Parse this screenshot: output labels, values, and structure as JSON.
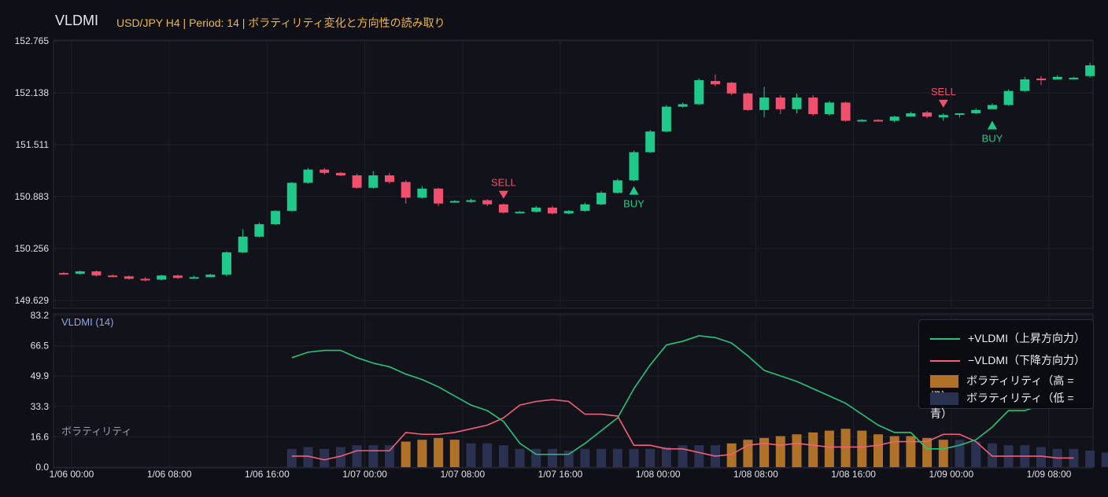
{
  "header": {
    "title": "VLDMI",
    "subtitle": "USD/JPY H4 | Period: 14 | ボラティリティ変化と方向性の読み取り"
  },
  "colors": {
    "up": "#1ec98a",
    "down": "#f0506e",
    "plus_line": "#26c47a",
    "minus_line": "#f0607a",
    "vol_high": "#b07228",
    "vol_low": "#2b3150",
    "background": "#0f0f17",
    "grid": "#1f1f2c"
  },
  "chart_data": [
    {
      "type": "candlestick",
      "y_ticks": [
        "152.765",
        "152.138",
        "151.511",
        "150.883",
        "150.256",
        "149.629"
      ],
      "ylim": [
        149.629,
        152.765
      ],
      "x_ticks": [
        "1/06 00:00",
        "1/06 08:00",
        "1/06 16:00",
        "1/07 00:00",
        "1/07 08:00",
        "1/07 16:00",
        "1/08 00:00",
        "1/08 08:00",
        "1/08 16:00",
        "1/09 00:00",
        "1/09 08:00"
      ],
      "candles": [
        [
          149.96,
          149.95,
          149.97,
          149.94
        ],
        [
          149.95,
          149.98,
          149.99,
          149.94
        ],
        [
          149.98,
          149.93,
          149.99,
          149.92
        ],
        [
          149.93,
          149.92,
          149.94,
          149.91
        ],
        [
          149.92,
          149.89,
          149.93,
          149.88
        ],
        [
          149.89,
          149.88,
          149.91,
          149.86
        ],
        [
          149.88,
          149.93,
          149.94,
          149.87
        ],
        [
          149.93,
          149.9,
          149.94,
          149.89
        ],
        [
          149.9,
          149.91,
          149.93,
          149.9
        ],
        [
          149.91,
          149.94,
          149.95,
          149.91
        ],
        [
          149.94,
          150.21,
          150.22,
          149.92
        ],
        [
          150.21,
          150.4,
          150.49,
          150.2
        ],
        [
          150.4,
          150.55,
          150.57,
          150.39
        ],
        [
          150.55,
          150.71,
          150.72,
          150.54
        ],
        [
          150.71,
          151.05,
          151.06,
          150.7
        ],
        [
          151.05,
          151.21,
          151.23,
          151.04
        ],
        [
          151.21,
          151.17,
          151.23,
          151.15
        ],
        [
          151.17,
          151.14,
          151.18,
          151.13
        ],
        [
          151.14,
          150.99,
          151.16,
          150.98
        ],
        [
          150.99,
          151.14,
          151.19,
          150.98
        ],
        [
          151.14,
          151.06,
          151.17,
          151.04
        ],
        [
          151.06,
          150.87,
          151.08,
          150.8
        ],
        [
          150.87,
          150.98,
          151.01,
          150.86
        ],
        [
          150.98,
          150.8,
          150.99,
          150.77
        ],
        [
          150.82,
          150.83,
          150.84,
          150.81
        ],
        [
          150.82,
          150.84,
          150.86,
          150.81
        ],
        [
          150.84,
          150.79,
          150.85,
          150.77
        ],
        [
          150.79,
          150.69,
          150.8,
          150.68
        ],
        [
          150.69,
          150.7,
          150.71,
          150.69
        ],
        [
          150.7,
          150.75,
          150.77,
          150.69
        ],
        [
          150.75,
          150.68,
          150.77,
          150.67
        ],
        [
          150.68,
          150.71,
          150.72,
          150.67
        ],
        [
          150.71,
          150.79,
          150.81,
          150.7
        ],
        [
          150.79,
          150.93,
          150.95,
          150.78
        ],
        [
          150.93,
          151.08,
          151.1,
          150.92
        ],
        [
          151.08,
          151.42,
          151.44,
          151.07
        ],
        [
          151.42,
          151.67,
          151.69,
          151.41
        ],
        [
          151.67,
          151.97,
          151.99,
          151.66
        ],
        [
          151.97,
          152.0,
          152.02,
          151.96
        ],
        [
          152.0,
          152.29,
          152.31,
          151.99
        ],
        [
          152.28,
          152.24,
          152.36,
          152.22
        ],
        [
          152.26,
          152.13,
          152.27,
          152.11
        ],
        [
          152.13,
          151.93,
          152.14,
          151.92
        ],
        [
          151.93,
          152.08,
          152.21,
          151.84
        ],
        [
          152.08,
          151.94,
          152.11,
          151.88
        ],
        [
          151.94,
          152.08,
          152.13,
          151.89
        ],
        [
          152.08,
          151.88,
          152.11,
          151.86
        ],
        [
          151.88,
          152.02,
          152.04,
          151.86
        ],
        [
          152.02,
          151.8,
          152.03,
          151.79
        ],
        [
          151.8,
          151.81,
          151.82,
          151.79
        ],
        [
          151.81,
          151.8,
          151.82,
          151.79
        ],
        [
          151.8,
          151.85,
          151.86,
          151.78
        ],
        [
          151.85,
          151.89,
          151.91,
          151.85
        ],
        [
          151.9,
          151.85,
          151.92,
          151.83
        ],
        [
          151.84,
          151.87,
          151.89,
          151.8
        ],
        [
          151.88,
          151.89,
          151.89,
          151.84
        ],
        [
          151.89,
          151.93,
          151.95,
          151.88
        ],
        [
          151.94,
          151.99,
          152.01,
          151.95
        ],
        [
          151.99,
          152.16,
          152.18,
          151.98
        ],
        [
          152.16,
          152.3,
          152.33,
          152.15
        ],
        [
          152.31,
          152.29,
          152.34,
          152.23
        ],
        [
          152.3,
          152.33,
          152.35,
          152.3
        ],
        [
          152.32,
          152.32,
          152.33,
          152.3
        ],
        [
          152.34,
          152.47,
          152.5,
          152.32
        ]
      ],
      "signals": [
        {
          "label": "SELL",
          "index": 27,
          "dir": "sell",
          "price": 150.84
        },
        {
          "label": "BUY",
          "index": 35,
          "dir": "buy",
          "price": 151.02
        },
        {
          "label": "SELL",
          "index": 54,
          "dir": "sell",
          "price": 151.94
        },
        {
          "label": "BUY",
          "index": 57,
          "dir": "buy",
          "price": 151.81
        }
      ]
    },
    {
      "type": "line",
      "label": "VLDMI (14)",
      "sub_label": "ボラティリティ",
      "y_ticks": [
        "83.2",
        "66.5",
        "49.9",
        "33.3",
        "16.6",
        "0.0"
      ],
      "ylim": [
        0,
        83.2
      ],
      "series": [
        {
          "name": "+VLDMI（上昇方向力）",
          "start": 14,
          "values": [
            60,
            63,
            64,
            64,
            60,
            57,
            55,
            51,
            48,
            44,
            39,
            34,
            31,
            25,
            13,
            7,
            7,
            7,
            13,
            20,
            27,
            43,
            56,
            67,
            69,
            72,
            71,
            68,
            61,
            53,
            50,
            47,
            43,
            39,
            35,
            29,
            23,
            19,
            19,
            10,
            10,
            12,
            15,
            22,
            31,
            31,
            34
          ]
        },
        {
          "name": "−VLDMI（下降方向力）",
          "start": 14,
          "values": [
            6,
            6,
            4,
            6,
            9,
            9,
            9,
            19,
            18,
            18,
            19,
            21,
            23,
            27,
            34,
            36,
            37,
            36,
            29,
            29,
            28,
            12,
            12,
            10,
            10,
            8,
            6,
            7,
            12,
            13,
            12,
            13,
            12,
            11,
            11,
            11,
            12,
            14,
            14,
            14,
            18,
            18,
            14,
            6,
            6,
            6,
            6,
            5,
            5
          ]
        },
        {
          "name": "ボラティリティ（高 = 橙）/ ボラティリティ（低 = 青）",
          "values": [
            10,
            11,
            10,
            11,
            12,
            12,
            12,
            14,
            15,
            16,
            15,
            13,
            13,
            12,
            10,
            10,
            10,
            9,
            10,
            10,
            10,
            10,
            10,
            11,
            12,
            12,
            12,
            13,
            15,
            16,
            17,
            18,
            19,
            20,
            21,
            20,
            18,
            17,
            17,
            16,
            15,
            15,
            14,
            13,
            12,
            12,
            11,
            10,
            10,
            9,
            8,
            8,
            7
          ],
          "high_flags": [
            0,
            0,
            0,
            0,
            0,
            0,
            0,
            1,
            1,
            1,
            1,
            0,
            0,
            0,
            0,
            0,
            0,
            0,
            0,
            0,
            0,
            0,
            0,
            0,
            0,
            0,
            0,
            1,
            1,
            1,
            1,
            1,
            1,
            1,
            1,
            1,
            1,
            1,
            1,
            1,
            1,
            0,
            0,
            0,
            0,
            0,
            0,
            0,
            0,
            0,
            0,
            0,
            0
          ]
        }
      ]
    }
  ],
  "legend": {
    "items": [
      {
        "label": "+VLDMI（上昇方向力）"
      },
      {
        "label": "−VLDMI（下降方向力）"
      },
      {
        "label": "ボラティリティ（高 = 橙）"
      },
      {
        "label": "ボラティリティ（低 = 青）"
      }
    ]
  }
}
